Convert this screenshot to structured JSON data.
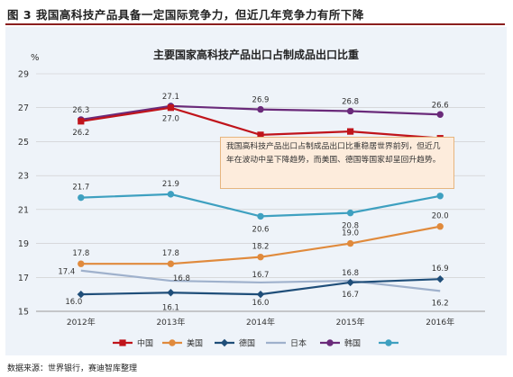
{
  "figure_title": "图 3    我国高科技产品具备一定国际竞争力，但近几年竞争力有所下降",
  "source": "数据来源：世界银行，赛迪智库整理",
  "annotation": "我国高科技产品出口占制成品出口比重稳居世界前列，但近几年在波动中呈下降趋势，而美国、德国等国家却呈回升趋势。",
  "chart_data": {
    "type": "line",
    "title": "主要国家高科技产品出口占制成品出口比重",
    "ylabel": "%",
    "xlabel": "",
    "categories": [
      "2012年",
      "2013年",
      "2014年",
      "2015年",
      "2016年"
    ],
    "ylim": [
      15,
      29
    ],
    "yticks": [
      15,
      17,
      19,
      21,
      23,
      25,
      27,
      29
    ],
    "grid": true,
    "legend_position": "bottom",
    "series": [
      {
        "name": "中国",
        "color": "#c0141b",
        "marker": "square",
        "values": [
          26.2,
          27.0,
          25.4,
          25.6,
          25.2
        ]
      },
      {
        "name": "美国",
        "color": "#e08a3c",
        "marker": "circle",
        "values": [
          17.8,
          17.8,
          18.2,
          19.0,
          20.0
        ]
      },
      {
        "name": "德国",
        "color": "#1f4e79",
        "marker": "diamond",
        "values": [
          16.0,
          16.1,
          16.0,
          16.7,
          16.9
        ]
      },
      {
        "name": "日本",
        "color": "#9fb1cc",
        "marker": "none",
        "values": [
          17.4,
          16.8,
          16.7,
          16.8,
          16.2
        ]
      },
      {
        "name": "韩国",
        "color": "#6a2a7a",
        "marker": "circle",
        "values": [
          26.3,
          27.1,
          26.9,
          26.8,
          26.6
        ]
      },
      {
        "name": "",
        "color": "#3ea0c0",
        "marker": "circle",
        "values": [
          21.7,
          21.9,
          20.6,
          20.8,
          21.8
        ]
      }
    ],
    "value_labels": [
      {
        "series": 0,
        "index": 0,
        "text": "26.2"
      },
      {
        "series": 0,
        "index": 1,
        "text": "27.0"
      },
      {
        "series": 0,
        "index": 2,
        "text": "25.4"
      },
      {
        "series": 0,
        "index": 3,
        "text": "25.6"
      },
      {
        "series": 0,
        "index": 4,
        "text": "25.2"
      },
      {
        "series": 4,
        "index": 0,
        "text": "26.3"
      },
      {
        "series": 4,
        "index": 1,
        "text": "27.1"
      },
      {
        "series": 4,
        "index": 2,
        "text": "26.9"
      },
      {
        "series": 4,
        "index": 3,
        "text": "26.8"
      },
      {
        "series": 4,
        "index": 4,
        "text": "26.6"
      },
      {
        "series": 5,
        "index": 0,
        "text": "21.7"
      },
      {
        "series": 5,
        "index": 1,
        "text": "21.9"
      },
      {
        "series": 5,
        "index": 2,
        "text": "20.6"
      },
      {
        "series": 5,
        "index": 3,
        "text": "20.8"
      },
      {
        "series": 5,
        "index": 4,
        "text": "21.8"
      },
      {
        "series": 1,
        "index": 0,
        "text": "17.8"
      },
      {
        "series": 1,
        "index": 1,
        "text": "17.8"
      },
      {
        "series": 1,
        "index": 2,
        "text": "18.2"
      },
      {
        "series": 1,
        "index": 3,
        "text": "19.0"
      },
      {
        "series": 1,
        "index": 4,
        "text": "20.0"
      },
      {
        "series": 3,
        "index": 0,
        "text": "17.4"
      },
      {
        "series": 3,
        "index": 1,
        "text": "16.8"
      },
      {
        "series": 3,
        "index": 2,
        "text": "16.7"
      },
      {
        "series": 3,
        "index": 3,
        "text": "16.8"
      },
      {
        "series": 3,
        "index": 4,
        "text": "16.2"
      },
      {
        "series": 2,
        "index": 0,
        "text": "16.0"
      },
      {
        "series": 2,
        "index": 1,
        "text": "16.1"
      },
      {
        "series": 2,
        "index": 2,
        "text": "16.0"
      },
      {
        "series": 2,
        "index": 3,
        "text": "16.7"
      },
      {
        "series": 2,
        "index": 4,
        "text": "16.9"
      }
    ]
  }
}
